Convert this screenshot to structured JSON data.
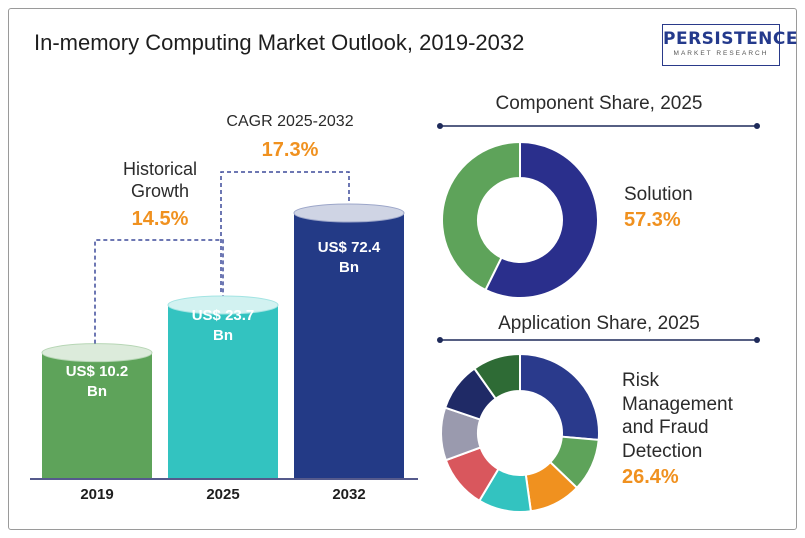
{
  "title": "In-memory Computing Market Outlook, 2019-2032",
  "logo": {
    "name": "PERSISTENCE",
    "tagline": "MARKET RESEARCH"
  },
  "chart_data": [
    {
      "type": "bar",
      "categories": [
        "2019",
        "2025",
        "2032"
      ],
      "values": [
        10.2,
        23.7,
        72.4
      ],
      "value_labels": [
        [
          "US$ 10.2",
          "Bn"
        ],
        [
          "US$ 23.7",
          "Bn"
        ],
        [
          "US$ 72.4",
          "Bn"
        ]
      ],
      "colors": [
        "#5ea35a",
        "#33c3c0",
        "#233a86"
      ],
      "annotations": {
        "historical": {
          "label_lines": [
            "Historical",
            "Growth"
          ],
          "value": "14.5%"
        },
        "cagr": {
          "label": "CAGR 2025-2032",
          "value": "17.3%"
        }
      }
    },
    {
      "type": "pie",
      "title": "Component Share, 2025",
      "highlight": {
        "label": "Solution",
        "value": "57.3%"
      },
      "slices": [
        {
          "value": 57.3,
          "color": "#2a2f8c"
        },
        {
          "value": 42.7,
          "color": "#5ea35a"
        }
      ]
    },
    {
      "type": "pie",
      "title": "Application Share, 2025",
      "highlight": {
        "label_lines": [
          "Risk",
          "Management",
          "and Fraud",
          "Detection"
        ],
        "value": "26.4%"
      },
      "slices": [
        {
          "value": 26.4,
          "color": "#2a3a8c"
        },
        {
          "value": 10.8,
          "color": "#5ea35a"
        },
        {
          "value": 10.6,
          "color": "#f0911f"
        },
        {
          "value": 10.8,
          "color": "#33c3c0"
        },
        {
          "value": 10.8,
          "color": "#d9575d"
        },
        {
          "value": 10.8,
          "color": "#9a9aae"
        },
        {
          "value": 10.0,
          "color": "#1f2a66"
        },
        {
          "value": 9.8,
          "color": "#2e6b35"
        }
      ]
    }
  ]
}
